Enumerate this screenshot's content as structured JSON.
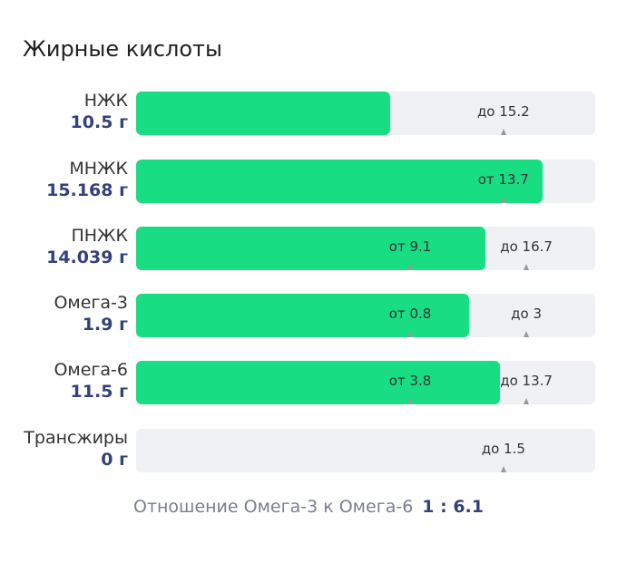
{
  "title": "Жирные кислоты",
  "rows": [
    {
      "name": "НЖК",
      "amount": 10.5,
      "unit": "г",
      "markers": [
        "до 15.2"
      ]
    },
    {
      "name": "МНЖК",
      "amount": 15.168,
      "unit": "г",
      "markers": [
        "от 13.7"
      ]
    },
    {
      "name": "ПНЖК",
      "amount": 14.039,
      "unit": "г",
      "markers": [
        "от 9.1",
        "до 16.7"
      ]
    },
    {
      "name": "Омега-3",
      "amount": 1.9,
      "unit": "г",
      "markers": [
        "от 0.8",
        "до 3"
      ]
    },
    {
      "name": "Омега-6",
      "amount": 11.5,
      "unit": "г",
      "markers": [
        "от 3.8",
        "до 13.7"
      ]
    },
    {
      "name": "Трансжиры",
      "amount": 0,
      "unit": "г",
      "markers": [
        "до 1.5"
      ]
    }
  ],
  "ratio": {
    "label": "Отношение Омега-3 к Омега-6",
    "value": "1 : 6.1"
  }
}
